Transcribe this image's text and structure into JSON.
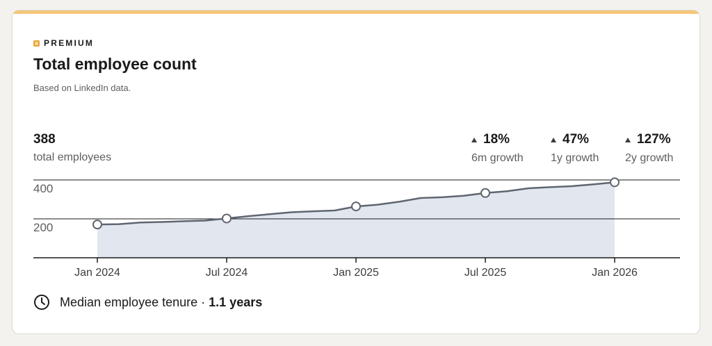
{
  "premium_label": "PREMIUM",
  "title": "Total employee count",
  "subtitle": "Based on LinkedIn data.",
  "summary": {
    "total_value": "388",
    "total_label": "total employees"
  },
  "growth": [
    {
      "value": "18%",
      "label": "6m growth",
      "direction": "up"
    },
    {
      "value": "47%",
      "label": "1y growth",
      "direction": "up"
    },
    {
      "value": "127%",
      "label": "2y growth",
      "direction": "up"
    }
  ],
  "tenure": {
    "label": "Median employee tenure",
    "separator": "·",
    "value": "1.1 years"
  },
  "colors": {
    "accent": "#f5c67a",
    "line": "#5f6670",
    "area": "#e1e6ef",
    "gridline": "#1a1a1a"
  },
  "chart_data": {
    "type": "area",
    "x": [
      "2024-01",
      "2024-02",
      "2024-03",
      "2024-04",
      "2024-05",
      "2024-06",
      "2024-07",
      "2024-08",
      "2024-09",
      "2024-10",
      "2024-11",
      "2024-12",
      "2025-01",
      "2025-02",
      "2025-03",
      "2025-04",
      "2025-05",
      "2025-06",
      "2025-07",
      "2025-08",
      "2025-09",
      "2025-10",
      "2025-11",
      "2025-12",
      "2026-01"
    ],
    "values": [
      171,
      173,
      181,
      184,
      188,
      191,
      202,
      214,
      224,
      234,
      239,
      243,
      264,
      273,
      288,
      307,
      311,
      319,
      333,
      342,
      357,
      363,
      368,
      377,
      388
    ],
    "marked_indices": [
      0,
      6,
      12,
      18,
      24
    ],
    "x_ticks": [
      {
        "index": 0,
        "label": "Jan 2024"
      },
      {
        "index": 6,
        "label": "Jul 2024"
      },
      {
        "index": 12,
        "label": "Jan 2025"
      },
      {
        "index": 18,
        "label": "Jul 2025"
      },
      {
        "index": 24,
        "label": "Jan 2026"
      }
    ],
    "y_ticks": [
      200,
      400
    ],
    "ylim": [
      0,
      400
    ],
    "grid": true
  }
}
